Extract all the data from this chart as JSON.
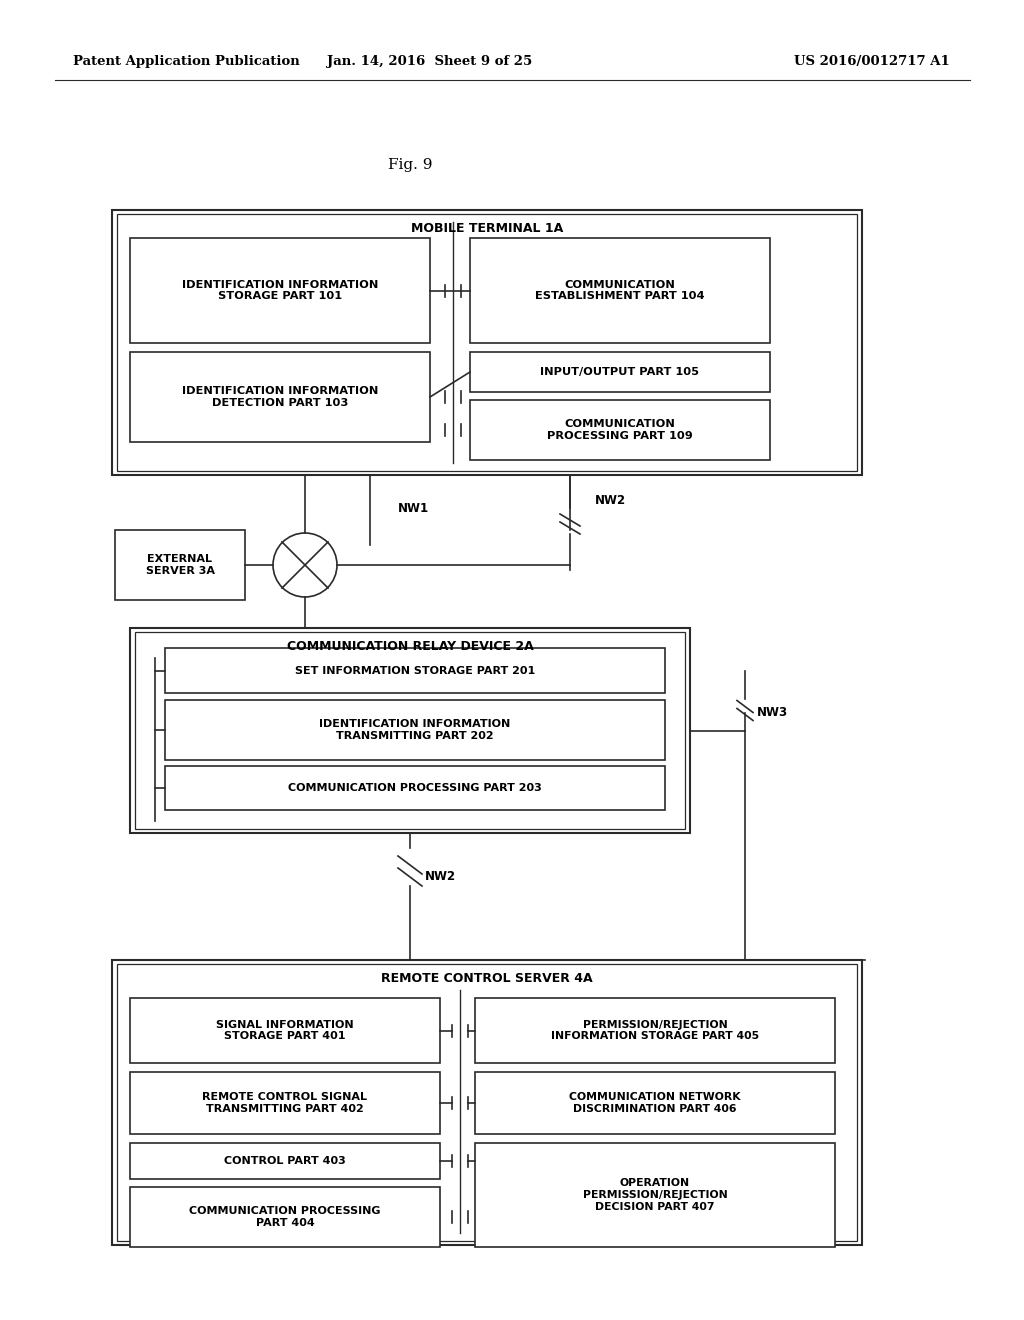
{
  "page_header_left": "Patent Application Publication",
  "page_header_mid": "Jan. 14, 2016  Sheet 9 of 25",
  "page_header_right": "US 2016/0012717 A1",
  "fig_label": "Fig. 9",
  "bg_color": "#ffffff",
  "line_color": "#2a2a2a",
  "box_fill": "#ffffff",
  "header_fontsize": 9.5,
  "fig_fontsize": 11,
  "title_fontsize": 9,
  "inner_fontsize": 8.0
}
